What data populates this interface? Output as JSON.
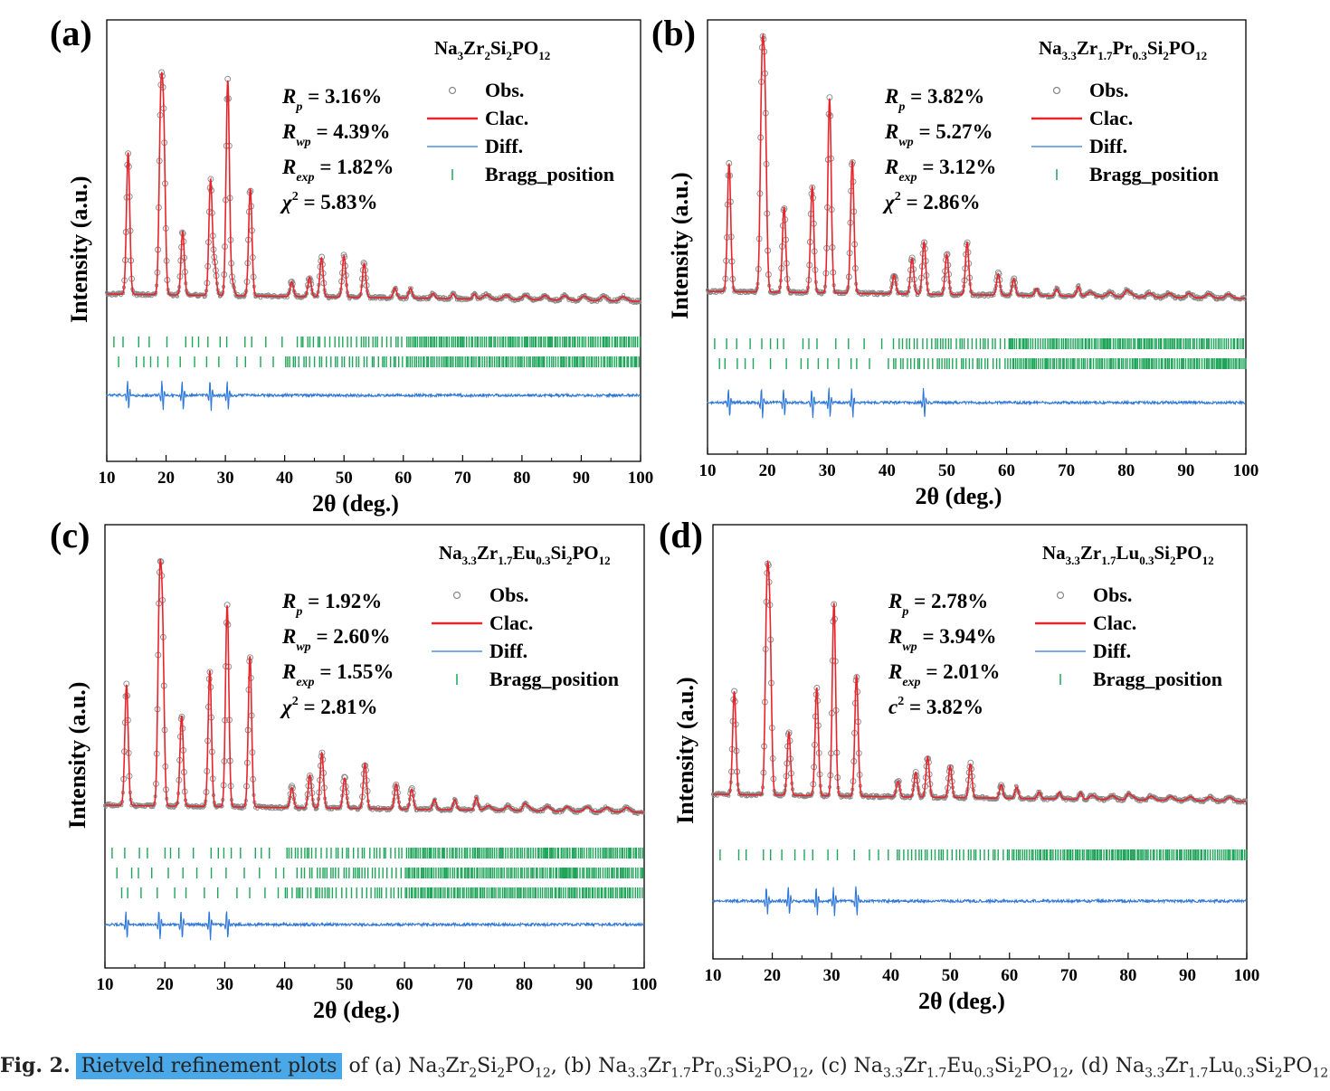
{
  "figure": {
    "caption": {
      "label": "Fig. 2.",
      "highlight": "Rietveld refinement plots",
      "parts": [
        {
          "t": " of (a) Na"
        },
        {
          "s": "3"
        },
        {
          "t": "Zr"
        },
        {
          "s": "2"
        },
        {
          "t": "Si"
        },
        {
          "s": "2"
        },
        {
          "t": "PO"
        },
        {
          "s": "12"
        },
        {
          "t": ", (b) Na"
        },
        {
          "s": "3.3"
        },
        {
          "t": "Zr"
        },
        {
          "s": "1.7"
        },
        {
          "t": "Pr"
        },
        {
          "s": "0.3"
        },
        {
          "t": "Si"
        },
        {
          "s": "2"
        },
        {
          "t": "PO"
        },
        {
          "s": "12"
        },
        {
          "t": ", (c) Na"
        },
        {
          "s": "3.3"
        },
        {
          "t": "Zr"
        },
        {
          "s": "1.7"
        },
        {
          "t": "Eu"
        },
        {
          "s": "0.3"
        },
        {
          "t": "Si"
        },
        {
          "s": "2"
        },
        {
          "t": "PO"
        },
        {
          "s": "12"
        },
        {
          "t": ", (d) Na"
        },
        {
          "s": "3.3"
        },
        {
          "t": "Zr"
        },
        {
          "s": "1.7"
        },
        {
          "t": "Lu"
        },
        {
          "s": "0.3"
        },
        {
          "t": "Si"
        },
        {
          "s": "2"
        },
        {
          "t": "PO"
        },
        {
          "s": "12"
        },
        {
          "t": "."
        }
      ]
    },
    "colors": {
      "observed": "#888888",
      "calculated": "#e8242b",
      "difference": "#2f78d8",
      "bragg": "#1fa55a",
      "axis": "#000000"
    }
  },
  "chart_data": [
    {
      "type": "scatter",
      "panel_label": "(a)",
      "compound": [
        {
          "t": "Na"
        },
        {
          "s": "3"
        },
        {
          "t": "Zr"
        },
        {
          "s": "2"
        },
        {
          "t": "Si"
        },
        {
          "s": "2"
        },
        {
          "t": "PO"
        },
        {
          "s": "12"
        }
      ],
      "xlabel": "2θ (deg.)",
      "ylabel": "Intensity (a.u.)",
      "xlim": [
        10,
        100
      ],
      "xticks": [
        10,
        20,
        30,
        40,
        50,
        60,
        70,
        80,
        90,
        100
      ],
      "stats": [
        {
          "sym": "R",
          "sub": "p",
          "value": "= 3.16%"
        },
        {
          "sym": "R",
          "sub": "wp",
          "value": "= 4.39%"
        },
        {
          "sym": "R",
          "sub": "exp",
          "value": "=  1.82%"
        },
        {
          "sym": "χ",
          "sup": "2",
          "value": "= 5.83%"
        }
      ],
      "legend": [
        "Obs.",
        "Clac.",
        "Diff.",
        "Bragg_position"
      ],
      "legend_position": "top-right",
      "peaks": [
        {
          "x": 13.6,
          "h": 0.58
        },
        {
          "x": 19.1,
          "h": 0.72
        },
        {
          "x": 19.6,
          "h": 0.62
        },
        {
          "x": 22.8,
          "h": 0.26
        },
        {
          "x": 27.5,
          "h": 0.47
        },
        {
          "x": 28.2,
          "h": 0.12
        },
        {
          "x": 30.4,
          "h": 0.88
        },
        {
          "x": 31.2,
          "h": 0.05
        },
        {
          "x": 34.2,
          "h": 0.44
        },
        {
          "x": 41.2,
          "h": 0.06
        },
        {
          "x": 44.2,
          "h": 0.08
        },
        {
          "x": 46.2,
          "h": 0.16
        },
        {
          "x": 50.0,
          "h": 0.17
        },
        {
          "x": 53.4,
          "h": 0.14
        },
        {
          "x": 58.6,
          "h": 0.04
        },
        {
          "x": 61.2,
          "h": 0.04
        },
        {
          "x": 65.0,
          "h": 0.02
        },
        {
          "x": 68.4,
          "h": 0.02
        },
        {
          "x": 72.0,
          "h": 0.02
        }
      ],
      "bragg_rows": 2,
      "diff_spikes": [
        13.6,
        19.4,
        22.8,
        27.5,
        30.4
      ]
    },
    {
      "type": "scatter",
      "panel_label": "(b)",
      "compound": [
        {
          "t": "Na"
        },
        {
          "s": "3.3"
        },
        {
          "t": "Zr"
        },
        {
          "s": "1.7"
        },
        {
          "t": "Pr"
        },
        {
          "s": "0.3"
        },
        {
          "t": "Si"
        },
        {
          "s": "2"
        },
        {
          "t": "PO"
        },
        {
          "s": "12"
        }
      ],
      "xlabel": "2θ (deg.)",
      "ylabel": "Intensity (a.u.)",
      "xlim": [
        10,
        100
      ],
      "xticks": [
        10,
        20,
        30,
        40,
        50,
        60,
        70,
        80,
        90,
        100
      ],
      "stats": [
        {
          "sym": "R",
          "sub": "p",
          "value": "= 3.82%"
        },
        {
          "sym": "R",
          "sub": "wp",
          "value": "= 5.27%"
        },
        {
          "sym": "R",
          "sub": "exp",
          "value": "=  3.12%"
        },
        {
          "sym": "χ",
          "sup": "2",
          "value": "= 2.86%"
        }
      ],
      "legend": [
        "Obs.",
        "Clac.",
        "Diff.",
        "Bragg_position"
      ],
      "legend_position": "top-right",
      "peaks": [
        {
          "x": 13.6,
          "h": 0.54
        },
        {
          "x": 19.1,
          "h": 0.86
        },
        {
          "x": 19.6,
          "h": 0.74
        },
        {
          "x": 22.8,
          "h": 0.36
        },
        {
          "x": 27.5,
          "h": 0.45
        },
        {
          "x": 30.4,
          "h": 0.82
        },
        {
          "x": 34.2,
          "h": 0.56
        },
        {
          "x": 41.2,
          "h": 0.08
        },
        {
          "x": 44.2,
          "h": 0.15
        },
        {
          "x": 46.2,
          "h": 0.22
        },
        {
          "x": 50.0,
          "h": 0.17
        },
        {
          "x": 53.4,
          "h": 0.22
        },
        {
          "x": 58.6,
          "h": 0.09
        },
        {
          "x": 61.2,
          "h": 0.07
        },
        {
          "x": 65.0,
          "h": 0.03
        },
        {
          "x": 68.4,
          "h": 0.03
        },
        {
          "x": 72.0,
          "h": 0.04
        },
        {
          "x": 80.0,
          "h": 0.02
        }
      ],
      "bragg_rows": 2,
      "diff_spikes": [
        13.6,
        19.1,
        22.8,
        27.5,
        30.4,
        34.2,
        46.2
      ]
    },
    {
      "type": "scatter",
      "panel_label": "(c)",
      "compound": [
        {
          "t": "Na"
        },
        {
          "s": "3.3"
        },
        {
          "t": "Zr"
        },
        {
          "s": "1.7"
        },
        {
          "t": "Eu"
        },
        {
          "s": "0.3"
        },
        {
          "t": "Si"
        },
        {
          "s": "2"
        },
        {
          "t": "PO"
        },
        {
          "s": "12"
        }
      ],
      "xlabel": "2θ (deg.)",
      "ylabel": "Intensity (a.u.)",
      "xlim": [
        10,
        100
      ],
      "xticks": [
        10,
        20,
        30,
        40,
        50,
        60,
        70,
        80,
        90,
        100
      ],
      "stats": [
        {
          "sym": "R",
          "sub": "p",
          "value": "= 1.92%"
        },
        {
          "sym": "R",
          "sub": "wp",
          "value": "= 2.60%"
        },
        {
          "sym": "R",
          "sub": "exp",
          "value": "=  1.55%"
        },
        {
          "sym": "χ",
          "sup": "2",
          "value": "= 2.81%"
        }
      ],
      "legend": [
        "Obs.",
        "Clac.",
        "Diff.",
        "Bragg_position"
      ],
      "legend_position": "top-right",
      "peaks": [
        {
          "x": 13.6,
          "h": 0.48
        },
        {
          "x": 19.1,
          "h": 0.78
        },
        {
          "x": 19.6,
          "h": 0.66
        },
        {
          "x": 22.8,
          "h": 0.36
        },
        {
          "x": 27.5,
          "h": 0.54
        },
        {
          "x": 30.4,
          "h": 0.8
        },
        {
          "x": 34.2,
          "h": 0.6
        },
        {
          "x": 41.2,
          "h": 0.08
        },
        {
          "x": 44.2,
          "h": 0.13
        },
        {
          "x": 46.2,
          "h": 0.22
        },
        {
          "x": 50.0,
          "h": 0.12
        },
        {
          "x": 53.4,
          "h": 0.18
        },
        {
          "x": 58.6,
          "h": 0.1
        },
        {
          "x": 61.2,
          "h": 0.08
        },
        {
          "x": 65.0,
          "h": 0.04
        },
        {
          "x": 68.4,
          "h": 0.04
        },
        {
          "x": 72.0,
          "h": 0.05
        },
        {
          "x": 80.0,
          "h": 0.02
        }
      ],
      "bragg_rows": 3,
      "diff_spikes": [
        13.6,
        19.1,
        22.8,
        27.5,
        30.4
      ]
    },
    {
      "type": "scatter",
      "panel_label": "(d)",
      "compound": [
        {
          "t": "Na"
        },
        {
          "s": "3.3"
        },
        {
          "t": "Zr"
        },
        {
          "s": "1.7"
        },
        {
          "t": "Lu"
        },
        {
          "s": "0.3"
        },
        {
          "t": "Si"
        },
        {
          "s": "2"
        },
        {
          "t": "PO"
        },
        {
          "s": "12"
        }
      ],
      "xlabel": "2θ (deg.)",
      "ylabel": "Intensity (a.u.)",
      "xlim": [
        10,
        100
      ],
      "xticks": [
        10,
        20,
        30,
        40,
        50,
        60,
        70,
        80,
        90,
        100
      ],
      "stats": [
        {
          "sym": "R",
          "sub": "p",
          "value": "= 2.78%"
        },
        {
          "sym": "R",
          "sub": "wp",
          "value": "= 3.94%"
        },
        {
          "sym": "R",
          "sub": "exp",
          "value": "=  2.01%"
        },
        {
          "sym": "c",
          "sup": "2",
          "value": "= 3.82%"
        }
      ],
      "legend": [
        "Obs.",
        "Clac.",
        "Diff.",
        "Bragg_position"
      ],
      "legend_position": "top-right",
      "peaks": [
        {
          "x": 13.6,
          "h": 0.46
        },
        {
          "x": 19.1,
          "h": 0.84
        },
        {
          "x": 19.6,
          "h": 0.68
        },
        {
          "x": 22.8,
          "h": 0.28
        },
        {
          "x": 27.5,
          "h": 0.48
        },
        {
          "x": 30.4,
          "h": 0.86
        },
        {
          "x": 34.2,
          "h": 0.54
        },
        {
          "x": 41.2,
          "h": 0.07
        },
        {
          "x": 44.2,
          "h": 0.11
        },
        {
          "x": 46.2,
          "h": 0.18
        },
        {
          "x": 50.0,
          "h": 0.14
        },
        {
          "x": 53.4,
          "h": 0.15
        },
        {
          "x": 58.6,
          "h": 0.06
        },
        {
          "x": 61.2,
          "h": 0.05
        },
        {
          "x": 65.0,
          "h": 0.03
        },
        {
          "x": 68.4,
          "h": 0.03
        },
        {
          "x": 72.0,
          "h": 0.03
        },
        {
          "x": 80.0,
          "h": 0.02
        }
      ],
      "bragg_rows": 1,
      "diff_spikes": [
        19.1,
        22.8,
        27.5,
        30.4,
        34.2
      ]
    }
  ]
}
